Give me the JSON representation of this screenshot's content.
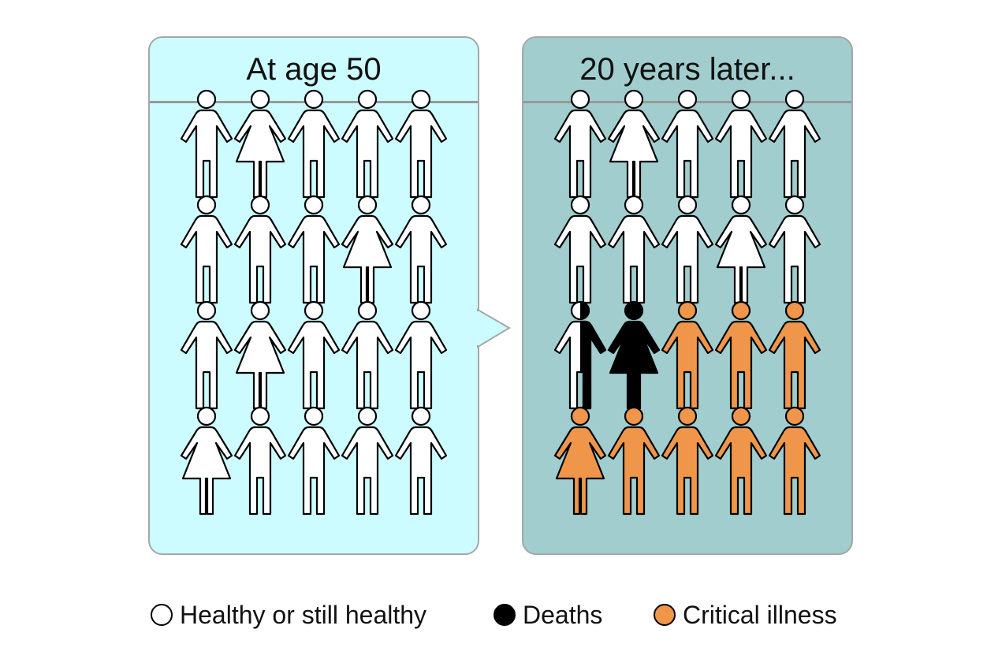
{
  "panels": [
    {
      "id": "left",
      "title": "At age 50",
      "background": "#ccfcff",
      "people": [
        [
          "male:healthy",
          "female:healthy",
          "male:healthy",
          "male:healthy",
          "male:healthy"
        ],
        [
          "male:healthy",
          "male:healthy",
          "male:healthy",
          "female:healthy",
          "male:healthy"
        ],
        [
          "male:healthy",
          "female:healthy",
          "male:healthy",
          "male:healthy",
          "male:healthy"
        ],
        [
          "female:healthy",
          "male:healthy",
          "male:healthy",
          "male:healthy",
          "male:healthy"
        ]
      ]
    },
    {
      "id": "right",
      "title": "20 years later...",
      "background": "#a1cdce",
      "people": [
        [
          "male:healthy",
          "female:healthy",
          "male:healthy",
          "male:healthy",
          "male:healthy"
        ],
        [
          "male:healthy",
          "male:healthy",
          "male:healthy",
          "female:healthy",
          "male:healthy"
        ],
        [
          "male:half",
          "female:death",
          "male:illness",
          "male:illness",
          "male:illness"
        ],
        [
          "female:illness",
          "male:illness",
          "male:illness",
          "male:illness",
          "male:illness"
        ]
      ]
    }
  ],
  "legend": [
    {
      "label": "Healthy or still healthy",
      "color": "#ffffff"
    },
    {
      "label": "Deaths",
      "color": "#000000"
    },
    {
      "label": "Critical illness",
      "color": "#f0964a"
    }
  ],
  "colors": {
    "healthy": "#ffffff",
    "death": "#000000",
    "illness": "#f0964a"
  }
}
